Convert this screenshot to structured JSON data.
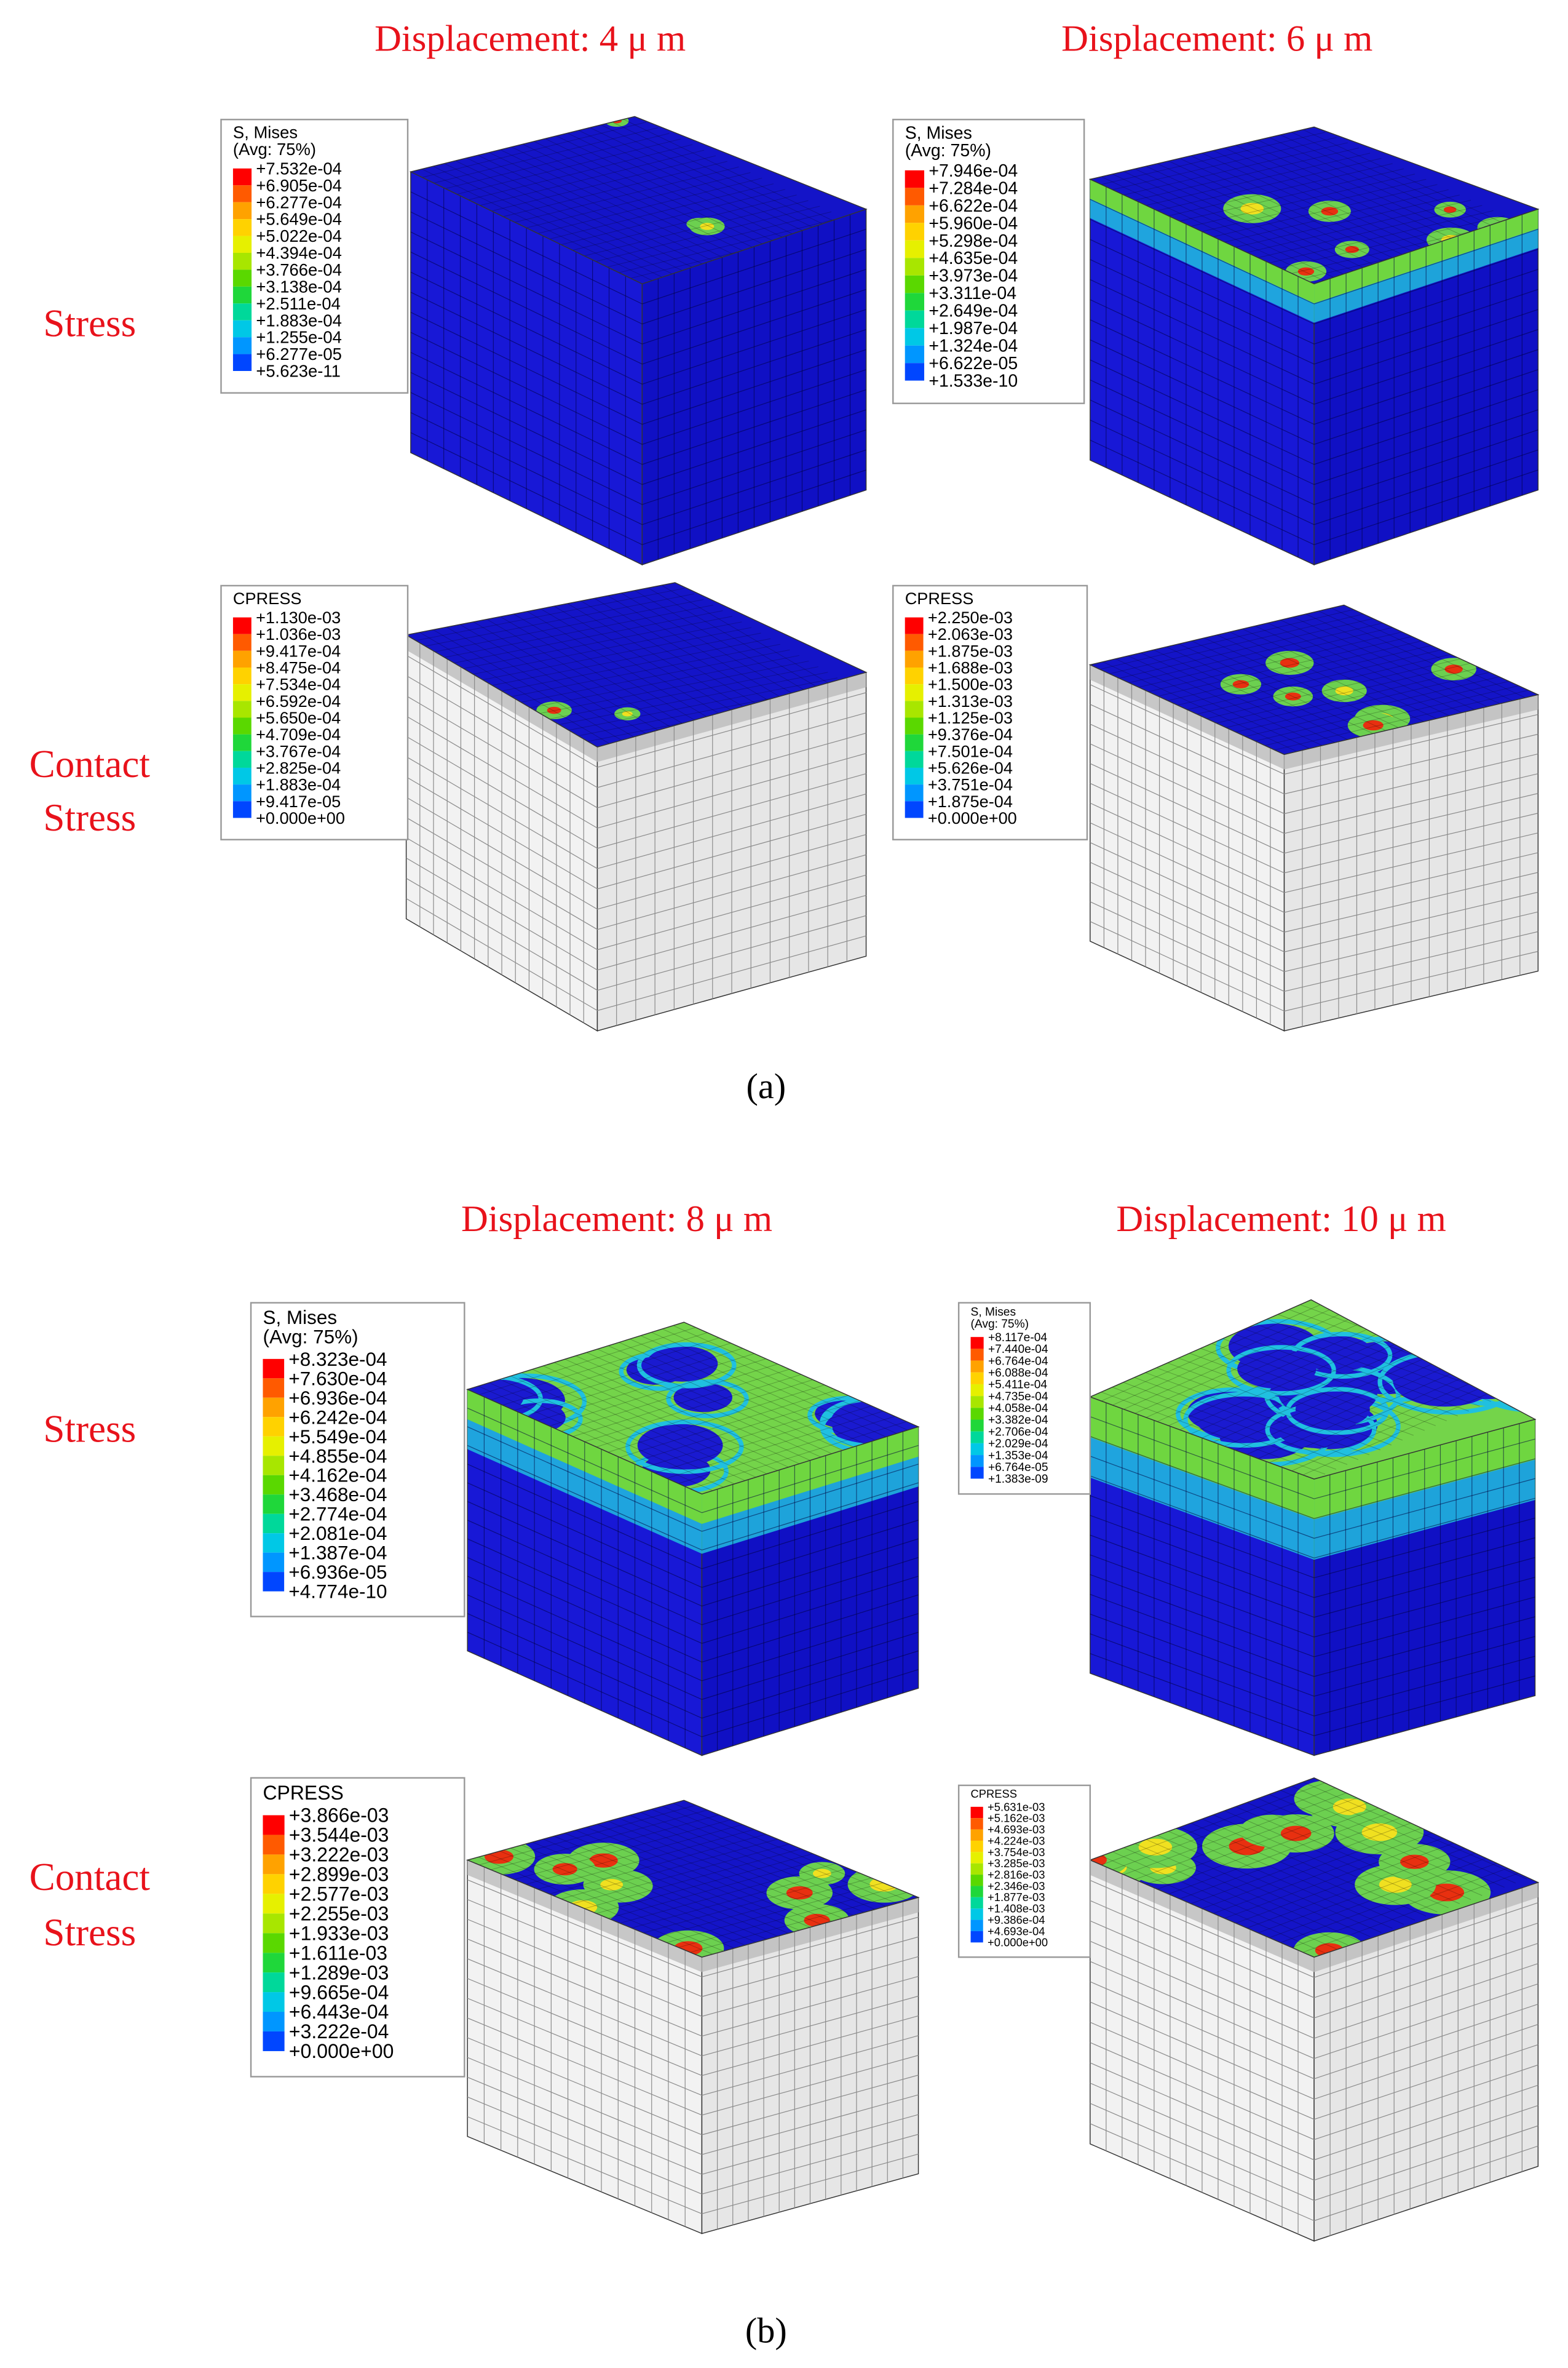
{
  "panels": [
    {
      "caption": "(a)",
      "row_labels": {
        "stress": "Stress",
        "contact": [
          "Contact",
          "Stress"
        ]
      },
      "columns": [
        {
          "title": "Displacement: 4 μ m",
          "stress_legend": {
            "title": [
              "S, Mises",
              "(Avg: 75%)"
            ],
            "labels": [
              "+7.532e-04",
              "+6.905e-04",
              "+6.277e-04",
              "+5.649e-04",
              "+5.022e-04",
              "+4.394e-04",
              "+3.766e-04",
              "+3.138e-04",
              "+2.511e-04",
              "+1.883e-04",
              "+1.255e-04",
              "+6.277e-05",
              "+5.623e-11"
            ]
          },
          "contact_legend": {
            "title": [
              "CPRESS"
            ],
            "labels": [
              "+1.130e-03",
              "+1.036e-03",
              "+9.417e-04",
              "+8.475e-04",
              "+7.534e-04",
              "+6.592e-04",
              "+5.650e-04",
              "+4.709e-04",
              "+3.767e-04",
              "+2.825e-04",
              "+1.883e-04",
              "+9.417e-05",
              "+0.000e+00"
            ]
          }
        },
        {
          "title": "Displacement: 6 μ m",
          "stress_legend": {
            "title": [
              "S, Mises",
              "(Avg: 75%)"
            ],
            "labels": [
              "+7.946e-04",
              "+7.284e-04",
              "+6.622e-04",
              "+5.960e-04",
              "+5.298e-04",
              "+4.635e-04",
              "+3.973e-04",
              "+3.311e-04",
              "+2.649e-04",
              "+1.987e-04",
              "+1.324e-04",
              "+6.622e-05",
              "+1.533e-10"
            ]
          },
          "contact_legend": {
            "title": [
              "CPRESS"
            ],
            "labels": [
              "+2.250e-03",
              "+2.063e-03",
              "+1.875e-03",
              "+1.688e-03",
              "+1.500e-03",
              "+1.313e-03",
              "+1.125e-03",
              "+9.376e-04",
              "+7.501e-04",
              "+5.626e-04",
              "+3.751e-04",
              "+1.875e-04",
              "+0.000e+00"
            ]
          }
        }
      ]
    },
    {
      "caption": "(b)",
      "row_labels": {
        "stress": "Stress",
        "contact": [
          "Contact",
          "Stress"
        ]
      },
      "columns": [
        {
          "title": "Displacement: 8 μ m",
          "stress_legend": {
            "title": [
              "S, Mises",
              "(Avg: 75%)"
            ],
            "labels": [
              "+8.323e-04",
              "+7.630e-04",
              "+6.936e-04",
              "+6.242e-04",
              "+5.549e-04",
              "+4.855e-04",
              "+4.162e-04",
              "+3.468e-04",
              "+2.774e-04",
              "+2.081e-04",
              "+1.387e-04",
              "+6.936e-05",
              "+4.774e-10"
            ]
          },
          "contact_legend": {
            "title": [
              "CPRESS"
            ],
            "labels": [
              "+3.866e-03",
              "+3.544e-03",
              "+3.222e-03",
              "+2.899e-03",
              "+2.577e-03",
              "+2.255e-03",
              "+1.933e-03",
              "+1.611e-03",
              "+1.289e-03",
              "+9.665e-04",
              "+6.443e-04",
              "+3.222e-04",
              "+0.000e+00"
            ]
          }
        },
        {
          "title": "Displacement: 10 μ m",
          "stress_legend": {
            "title": [
              "S, Mises",
              "(Avg: 75%)"
            ],
            "labels": [
              "+8.117e-04",
              "+7.440e-04",
              "+6.764e-04",
              "+6.088e-04",
              "+5.411e-04",
              "+4.735e-04",
              "+4.058e-04",
              "+3.382e-04",
              "+2.706e-04",
              "+2.029e-04",
              "+1.353e-04",
              "+6.764e-05",
              "+1.383e-09"
            ]
          },
          "contact_legend": {
            "title": [
              "CPRESS"
            ],
            "labels": [
              "+5.631e-03",
              "+5.162e-03",
              "+4.693e-03",
              "+4.224e-03",
              "+3.754e-03",
              "+3.285e-03",
              "+2.816e-03",
              "+2.346e-03",
              "+1.877e-03",
              "+1.408e-03",
              "+9.386e-04",
              "+4.693e-04",
              "+0.000e+00"
            ]
          }
        }
      ]
    }
  ]
}
